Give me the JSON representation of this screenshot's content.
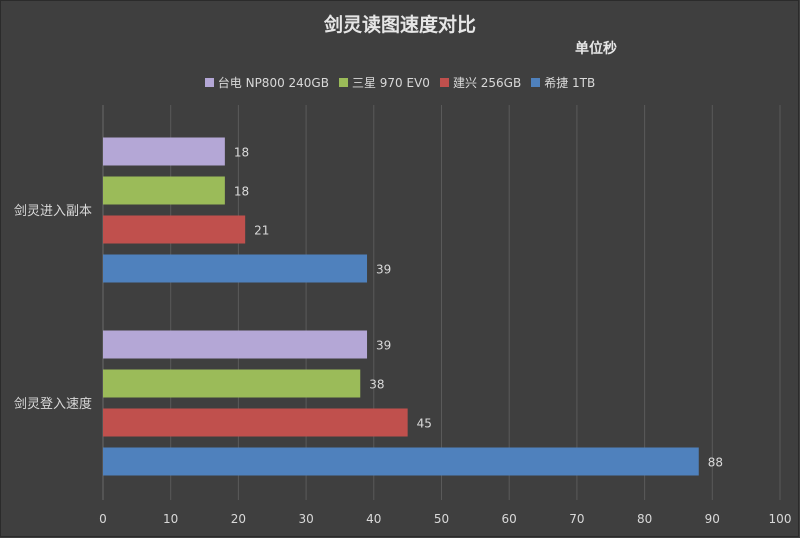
{
  "chart_data": {
    "type": "bar",
    "orientation": "horizontal",
    "title": "剑灵读图速度对比",
    "subtitle": "单位秒",
    "categories": [
      "剑灵进入副本",
      "剑灵登入速度"
    ],
    "series": [
      {
        "name": "台电 NP800 240GB",
        "color": "#b4a7d6",
        "values": [
          18,
          39
        ]
      },
      {
        "name": "三星 970 EV0",
        "color": "#9bbb59",
        "values": [
          18,
          38
        ]
      },
      {
        "name": "建兴 256GB",
        "color": "#c0504d",
        "values": [
          21,
          45
        ]
      },
      {
        "name": "希捷 1TB",
        "color": "#4f81bd",
        "values": [
          39,
          88
        ]
      }
    ],
    "xlim": [
      0,
      100
    ],
    "xticks": [
      0,
      10,
      20,
      30,
      40,
      50,
      60,
      70,
      80,
      90,
      100
    ],
    "grid": true,
    "legend_position": "top"
  }
}
